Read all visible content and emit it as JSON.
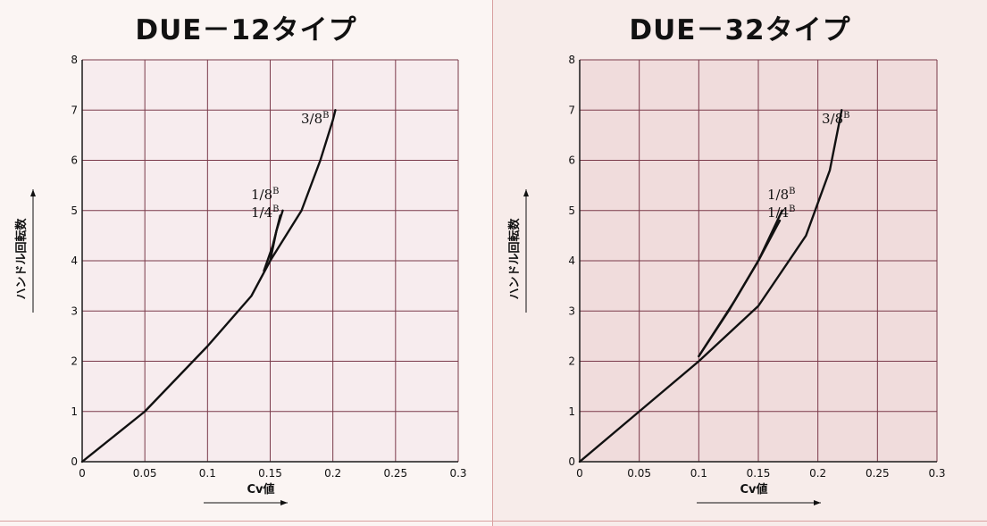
{
  "chart_data": [
    {
      "type": "line",
      "title": "DUE－12タイプ",
      "xlabel": "Cv値",
      "ylabel": "ハンドル回転数",
      "xlim": [
        0,
        0.3
      ],
      "ylim": [
        0,
        8
      ],
      "x_ticks": [
        "0",
        "0.05",
        "0.1",
        "0.15",
        "0.2",
        "0.25",
        "0.3"
      ],
      "y_ticks": [
        "0",
        "1",
        "2",
        "3",
        "4",
        "5",
        "6",
        "7",
        "8"
      ],
      "grid": true,
      "series": [
        {
          "name": "3/8",
          "name_sup": "B",
          "x": [
            0,
            0.05,
            0.1,
            0.135,
            0.15,
            0.175,
            0.19,
            0.2,
            0.202
          ],
          "y": [
            0,
            1,
            2.3,
            3.3,
            4,
            5,
            6,
            6.8,
            7
          ]
        },
        {
          "name": "1/8",
          "name_sup": "B",
          "x": [
            0.15,
            0.155,
            0.16
          ],
          "y": [
            4,
            4.6,
            5
          ]
        },
        {
          "name": "1/4",
          "name_sup": "B",
          "x": [
            0.145,
            0.152,
            0.158
          ],
          "y": [
            3.8,
            4.3,
            4.9
          ]
        }
      ]
    },
    {
      "type": "line",
      "title": "DUE－32タイプ",
      "xlabel": "Cv値",
      "ylabel": "ハンドル回転数",
      "xlim": [
        0,
        0.3
      ],
      "ylim": [
        0,
        8
      ],
      "x_ticks": [
        "0",
        "0.05",
        "0.1",
        "0.15",
        "0.2",
        "0.25",
        "0.3"
      ],
      "y_ticks": [
        "0",
        "1",
        "2",
        "3",
        "4",
        "5",
        "6",
        "7",
        "8"
      ],
      "grid": true,
      "series": [
        {
          "name": "3/8",
          "name_sup": "B",
          "x": [
            0,
            0.05,
            0.1,
            0.15,
            0.19,
            0.21,
            0.22
          ],
          "y": [
            0,
            1,
            2,
            3.1,
            4.5,
            5.8,
            7
          ]
        },
        {
          "name": "1/8",
          "name_sup": "B",
          "x": [
            0.1,
            0.13,
            0.15,
            0.17
          ],
          "y": [
            2.1,
            3.2,
            4,
            5
          ]
        },
        {
          "name": "1/4",
          "name_sup": "B",
          "x": [
            0.1,
            0.125,
            0.15,
            0.168
          ],
          "y": [
            2.1,
            3,
            4,
            4.8
          ]
        }
      ]
    }
  ],
  "colors": {
    "grid": "#7a3a4a",
    "axis": "#1a1a1a",
    "plot_bg_left": "#f7ecee",
    "plot_bg_right": "#f0dcdc",
    "curve": "#111111"
  }
}
